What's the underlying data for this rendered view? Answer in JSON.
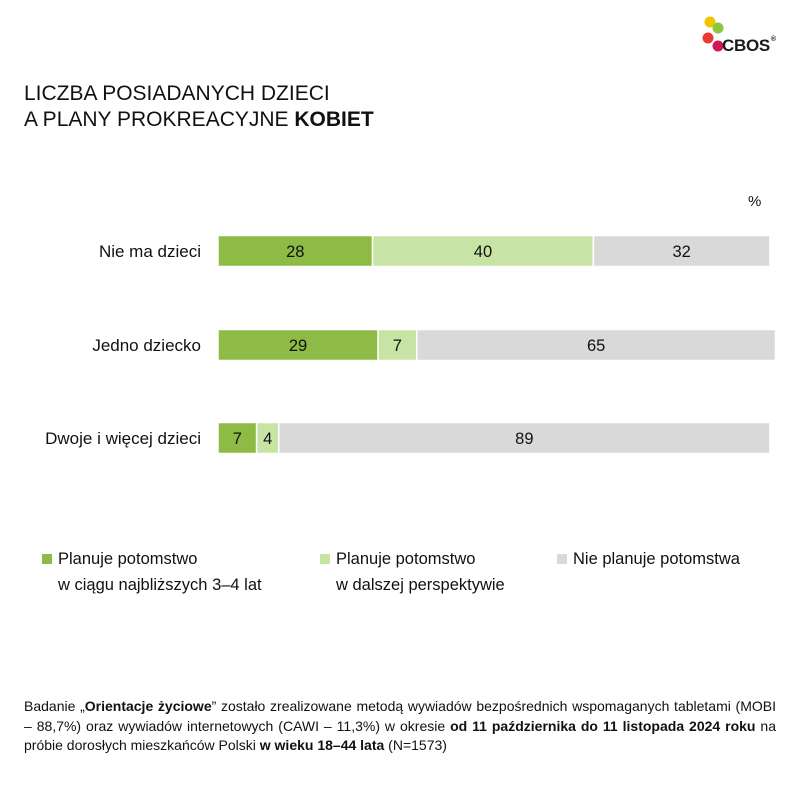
{
  "logo": {
    "text": "CBOS",
    "registered": "®",
    "colors": [
      "#f2c500",
      "#8cc63f",
      "#e63b2e",
      "#d4145a"
    ]
  },
  "title": {
    "line1": "LICZBA POSIADANYCH DZIECI",
    "line2_prefix": "A PLANY PROKREACYJNE ",
    "line2_bold": "KOBIET"
  },
  "chart_data": {
    "type": "bar",
    "orientation": "horizontal",
    "stacked": true,
    "unit": "%",
    "categories": [
      "Nie ma dzieci",
      "Jedno dziecko",
      "Dwoje i więcej dzieci"
    ],
    "series": [
      {
        "name": "Planuje potomstwo w ciągu najbliższych 3–4 lat",
        "color": "#8dbb45",
        "values": [
          28,
          29,
          7
        ]
      },
      {
        "name": "Planuje potomstwo w dalszej perspektywie",
        "color": "#c8e4a4",
        "values": [
          40,
          7,
          4
        ]
      },
      {
        "name": "Nie planuje potomstwa",
        "color": "#d9d9d9",
        "values": [
          32,
          65,
          89
        ]
      }
    ],
    "xlim": [
      0,
      100
    ],
    "grid": false,
    "legend": "bottom"
  },
  "legend": [
    {
      "line1": "Planuje potomstwo",
      "line2": "w ciągu najbliższych 3–4 lat",
      "color": "#8dbb45"
    },
    {
      "line1": "Planuje potomstwo",
      "line2": "w dalszej perspektywie",
      "color": "#c8e4a4"
    },
    {
      "line1": "Nie planuje potomstwa",
      "line2": "",
      "color": "#d9d9d9"
    }
  ],
  "footnote": {
    "p1": "Badanie „",
    "b1": "Orientacje życiowe",
    "p2": "” zostało zrealizowane metodą wywiadów bezpośrednich wspomaganych tabletami (MOBI – 88,7%) oraz wywiadów internetowych (CAWI – 11,3%) w okresie ",
    "b2": "od 11 października do 11 listopada 2024 roku",
    "p3": " na próbie dorosłych mieszkańców Polski ",
    "b3": "w wieku 18–44 lata",
    "p4": " (N=1573)"
  }
}
